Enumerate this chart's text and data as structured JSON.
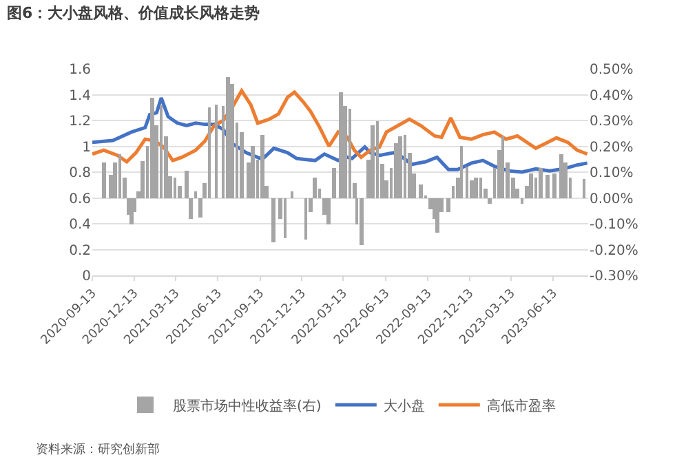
{
  "chart_data": {
    "type": "line",
    "title": "图6：大小盘风格、价值成长风格走势",
    "annotations": [
      "资料来源：研究创新部"
    ],
    "series": [
      {
        "name": "股票市场中性收益率(右)",
        "type": "bar",
        "axis": "y2",
        "color": "#a5a5a5",
        "x": [
          "2020-10-08",
          "2020-10-23",
          "2020-11-02",
          "2020-11-12",
          "2020-11-22",
          "2020-11-30",
          "2020-12-07",
          "2020-12-15",
          "2020-12-22",
          "2021-01-01",
          "2021-01-11",
          "2021-01-21",
          "2021-01-31",
          "2021-02-10",
          "2021-02-20",
          "2021-03-02",
          "2021-03-12",
          "2021-03-22",
          "2021-04-06",
          "2021-04-16",
          "2021-04-26",
          "2021-05-06",
          "2021-05-16",
          "2021-05-26",
          "2021-06-10",
          "2021-06-25",
          "2021-07-05",
          "2021-07-15",
          "2021-07-25",
          "2021-08-04",
          "2021-08-19",
          "2021-08-29",
          "2021-09-08",
          "2021-09-18",
          "2021-09-28",
          "2021-10-13",
          "2021-10-28",
          "2021-11-07",
          "2021-11-22",
          "2021-12-12",
          "2021-12-22",
          "2022-01-01",
          "2022-01-11",
          "2022-01-21",
          "2022-01-31",
          "2022-02-10",
          "2022-02-20",
          "2022-03-07",
          "2022-03-17",
          "2022-03-27",
          "2022-04-06",
          "2022-04-11",
          "2022-04-21",
          "2022-05-06",
          "2022-05-16",
          "2022-05-26",
          "2022-06-05",
          "2022-06-15",
          "2022-06-25",
          "2022-07-05",
          "2022-07-15",
          "2022-07-25",
          "2022-08-04",
          "2022-08-14",
          "2022-08-29",
          "2022-09-08",
          "2022-09-18",
          "2022-09-28",
          "2022-10-03",
          "2022-10-13",
          "2022-10-28",
          "2022-11-07",
          "2022-11-17",
          "2022-11-25",
          "2022-12-07",
          "2022-12-17",
          "2022-12-27",
          "2023-01-06",
          "2023-01-16",
          "2023-01-26",
          "2023-02-05",
          "2023-02-15",
          "2023-02-23",
          "2023-03-05",
          "2023-03-17",
          "2023-03-27",
          "2023-04-06",
          "2023-04-16",
          "2023-04-26",
          "2023-05-06",
          "2023-05-16",
          "2023-05-31",
          "2023-06-15",
          "2023-06-30",
          "2023-07-10",
          "2023-07-20",
          "2023-08-19"
        ],
        "values": [
          0.135,
          0.09,
          0.135,
          0.17,
          0.08,
          -0.065,
          -0.1,
          -0.055,
          0.025,
          0.145,
          0.2,
          0.39,
          0.28,
          0.36,
          0.24,
          0.085,
          0.08,
          0.045,
          0.105,
          -0.08,
          0.025,
          -0.075,
          0.06,
          0.35,
          0.36,
          0.355,
          0.47,
          0.44,
          0.29,
          0.255,
          0.14,
          0.2,
          0.15,
          0.245,
          0.045,
          -0.17,
          -0.08,
          -0.155,
          0.025,
          0.0,
          -0.16,
          -0.055,
          0.08,
          0.035,
          -0.065,
          -0.1,
          0.115,
          0.41,
          0.355,
          0.345,
          0.06,
          -0.1,
          -0.18,
          0.15,
          0.28,
          0.3,
          0.13,
          0.07,
          0.115,
          0.21,
          0.24,
          0.245,
          0.175,
          0.095,
          0.05,
          0.005,
          -0.045,
          -0.08,
          -0.135,
          -0.055,
          -0.055,
          0.045,
          0.08,
          0.2,
          0.12,
          0.07,
          0.08,
          0.08,
          0.035,
          -0.02,
          0.115,
          0.185,
          0.24,
          0.14,
          0.08,
          0.035,
          -0.02,
          0.045,
          0.095,
          0.08,
          0.115,
          0.09,
          0.095,
          0.17,
          0.14,
          0.08,
          0.075
        ]
      },
      {
        "name": "大小盘",
        "color": "#4472c4",
        "x": [
          "2020-09-13",
          "2020-10-28",
          "2020-12-07",
          "2021-01-06",
          "2021-01-16",
          "2021-01-31",
          "2021-02-10",
          "2021-02-25",
          "2021-03-17",
          "2021-04-06",
          "2021-04-26",
          "2021-05-16",
          "2021-06-05",
          "2021-06-25",
          "2021-07-15",
          "2021-08-14",
          "2021-09-18",
          "2021-10-13",
          "2021-11-12",
          "2021-12-02",
          "2022-01-11",
          "2022-01-31",
          "2022-03-02",
          "2022-03-22",
          "2022-04-01",
          "2022-04-29",
          "2022-05-11",
          "2022-05-31",
          "2022-06-30",
          "2022-07-20",
          "2022-08-09",
          "2022-09-08",
          "2022-10-03",
          "2022-10-28",
          "2022-11-17",
          "2022-12-17",
          "2023-01-11",
          "2023-02-05",
          "2023-03-07",
          "2023-04-06",
          "2023-05-06",
          "2023-06-05",
          "2023-07-05",
          "2023-08-04",
          "2023-08-26"
        ],
        "values": [
          1.03,
          1.045,
          1.11,
          1.145,
          1.245,
          1.26,
          1.375,
          1.23,
          1.18,
          1.16,
          1.18,
          1.17,
          1.17,
          1.13,
          1.02,
          0.95,
          0.9,
          0.985,
          0.95,
          0.905,
          0.89,
          0.94,
          0.89,
          0.915,
          0.905,
          0.995,
          0.95,
          0.93,
          0.95,
          0.915,
          0.86,
          0.88,
          0.915,
          0.82,
          0.82,
          0.87,
          0.89,
          0.845,
          0.81,
          0.8,
          0.825,
          0.81,
          0.825,
          0.855,
          0.87
        ]
      },
      {
        "name": "高低市盈率",
        "color": "#ed7d31",
        "x": [
          "2020-09-13",
          "2020-10-08",
          "2020-11-07",
          "2020-11-27",
          "2020-12-17",
          "2021-01-06",
          "2021-01-26",
          "2021-02-15",
          "2021-03-07",
          "2021-03-27",
          "2021-04-26",
          "2021-05-16",
          "2021-06-05",
          "2021-06-25",
          "2021-07-15",
          "2021-08-04",
          "2021-08-24",
          "2021-09-08",
          "2021-10-03",
          "2021-10-23",
          "2021-11-12",
          "2021-11-27",
          "2021-12-17",
          "2022-01-01",
          "2022-01-21",
          "2022-02-10",
          "2022-03-02",
          "2022-03-22",
          "2022-04-06",
          "2022-04-21",
          "2022-05-11",
          "2022-05-31",
          "2022-06-15",
          "2022-07-10",
          "2022-08-04",
          "2022-08-29",
          "2022-09-28",
          "2022-10-13",
          "2022-11-02",
          "2022-11-22",
          "2022-12-17",
          "2023-01-11",
          "2023-02-05",
          "2023-03-02",
          "2023-03-27",
          "2023-05-06",
          "2023-05-26",
          "2023-06-20",
          "2023-07-15",
          "2023-08-04",
          "2023-08-26"
        ],
        "values": [
          0.94,
          0.97,
          0.93,
          0.88,
          0.95,
          1.055,
          1.045,
          0.995,
          0.89,
          0.915,
          0.97,
          1.04,
          1.16,
          1.2,
          1.305,
          1.43,
          1.32,
          1.18,
          1.21,
          1.25,
          1.38,
          1.42,
          1.34,
          1.27,
          1.145,
          1.0,
          1.11,
          1.07,
          0.97,
          0.915,
          0.97,
          0.995,
          1.11,
          1.16,
          1.21,
          1.16,
          1.08,
          1.07,
          1.22,
          1.07,
          1.055,
          1.09,
          1.11,
          1.055,
          1.08,
          0.985,
          1.02,
          1.065,
          1.03,
          0.97,
          0.94
        ]
      }
    ],
    "xlim": [
      "2020-09-13",
      "2023-08-28"
    ],
    "xticks": [
      "2020-09-13",
      "2020-12-13",
      "2021-03-13",
      "2021-06-13",
      "2021-09-13",
      "2021-12-13",
      "2022-03-13",
      "2022-06-13",
      "2022-09-13",
      "2022-12-13",
      "2023-03-13",
      "2023-06-13"
    ],
    "ylim": [
      0,
      1.6
    ],
    "yticks": [
      0,
      0.2,
      0.4,
      0.6,
      0.8,
      1,
      1.2,
      1.4,
      1.6
    ],
    "y2lim": [
      -0.3,
      0.5
    ],
    "y2ticks": [
      {
        "value": -0.3,
        "label": "-0.30%"
      },
      {
        "value": -0.2,
        "label": "-0.20%"
      },
      {
        "value": -0.1,
        "label": "-0.10%"
      },
      {
        "value": 0,
        "label": "0.00%"
      },
      {
        "value": 0.1,
        "label": "0.10%"
      },
      {
        "value": 0.2,
        "label": "0.20%"
      },
      {
        "value": 0.3,
        "label": "0.30%"
      },
      {
        "value": 0.4,
        "label": "0.40%"
      },
      {
        "value": 0.5,
        "label": "0.50%"
      }
    ],
    "grid": "y",
    "legend": "bottom",
    "marker": "none",
    "line_style": "solid"
  }
}
